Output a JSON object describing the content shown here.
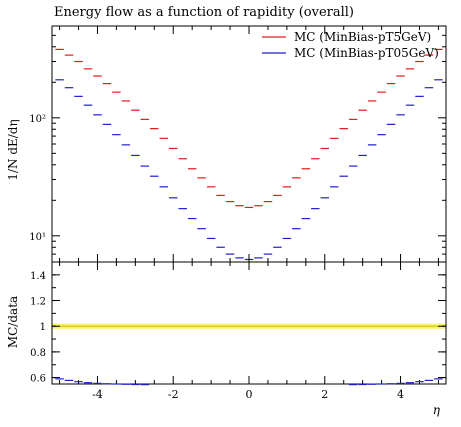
{
  "chart_data": {
    "type": "scatter",
    "title": "Energy flow as a function of rapidity (overall)",
    "xlabel": "η",
    "top_panel": {
      "ylabel": "1/N dE/dη",
      "yscale": "log",
      "ylim": [
        6,
        600
      ],
      "ytick_labels": [
        "10¹",
        "10²"
      ],
      "ytick_values": [
        10,
        100
      ],
      "legend_position": "top-right",
      "series": [
        {
          "name": "MC (MinBias-pT5GeV)",
          "color": "#e41a1c",
          "x": [
            -5.0,
            -4.75,
            -4.5,
            -4.25,
            -4.0,
            -3.75,
            -3.5,
            -3.25,
            -3.0,
            -2.75,
            -2.5,
            -2.25,
            -2.0,
            -1.75,
            -1.5,
            -1.25,
            -1.0,
            -0.75,
            -0.5,
            -0.25,
            0.0,
            0.25,
            0.5,
            0.75,
            1.0,
            1.25,
            1.5,
            1.75,
            2.0,
            2.25,
            2.5,
            2.75,
            3.0,
            3.25,
            3.5,
            3.75,
            4.0,
            4.25,
            4.5,
            4.75,
            5.0
          ],
          "y": [
            380,
            340,
            300,
            260,
            226,
            195,
            165,
            139,
            116,
            97,
            81,
            67,
            55,
            45,
            37,
            31,
            26,
            22,
            19.5,
            18,
            17.4,
            18,
            19.5,
            22,
            26,
            31,
            37,
            45,
            55,
            67,
            81,
            97,
            116,
            139,
            165,
            195,
            226,
            260,
            300,
            340,
            380
          ]
        },
        {
          "name": "MC (MinBias-pT05GeV)",
          "color": "#1f1fd0",
          "x": [
            -5.0,
            -4.75,
            -4.5,
            -4.25,
            -4.0,
            -3.75,
            -3.5,
            -3.25,
            -3.0,
            -2.75,
            -2.5,
            -2.25,
            -2.0,
            -1.75,
            -1.5,
            -1.25,
            -1.0,
            -0.75,
            -0.5,
            -0.25,
            0.0,
            0.25,
            0.5,
            0.75,
            1.0,
            1.25,
            1.5,
            1.75,
            2.0,
            2.25,
            2.5,
            2.75,
            3.0,
            3.25,
            3.5,
            3.75,
            4.0,
            4.25,
            4.5,
            4.75,
            5.0
          ],
          "y": [
            210,
            180,
            152,
            128,
            106,
            88,
            72,
            59,
            48,
            39,
            32,
            26,
            21,
            17,
            14,
            11.5,
            9.5,
            8.0,
            7.0,
            6.5,
            6.3,
            6.5,
            7.0,
            8.0,
            9.5,
            11.5,
            14,
            17,
            21,
            26,
            32,
            39,
            48,
            59,
            72,
            88,
            106,
            128,
            152,
            180,
            210
          ]
        }
      ]
    },
    "bottom_panel": {
      "ylabel": "MC/data",
      "ylim": [
        0.55,
        1.5
      ],
      "ytick_labels": [
        "0.6",
        "0.8",
        "1",
        "1.2",
        "1.4"
      ],
      "ytick_values": [
        0.6,
        0.8,
        1.0,
        1.2,
        1.4
      ],
      "reference_band": {
        "value": 1.0,
        "low": 0.98,
        "high": 1.02,
        "fill_color": "#f6f36a",
        "line_color": "#d4c400"
      },
      "series": [
        {
          "name": "MC (MinBias-pT05GeV)",
          "color": "#1f1fd0",
          "x": [
            -5.0,
            -4.75,
            -4.5,
            -4.25,
            -4.0,
            -3.75,
            -3.5,
            -3.25,
            -3.0,
            -2.75,
            2.75,
            3.0,
            3.25,
            3.5,
            3.75,
            4.0,
            4.25,
            4.5,
            4.75,
            5.0
          ],
          "y": [
            0.59,
            0.578,
            0.568,
            0.56,
            0.555,
            0.552,
            0.55,
            0.548,
            0.546,
            0.545,
            0.545,
            0.546,
            0.548,
            0.55,
            0.552,
            0.555,
            0.56,
            0.568,
            0.578,
            0.59
          ]
        }
      ]
    },
    "xlim": [
      -5.2,
      5.2
    ],
    "xtick_labels": [
      "-4",
      "-2",
      "0",
      "2",
      "4"
    ],
    "xtick_values": [
      -4,
      -2,
      0,
      2,
      4
    ]
  }
}
